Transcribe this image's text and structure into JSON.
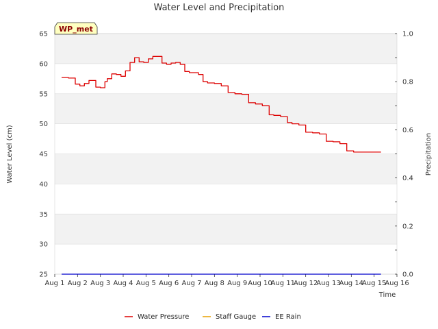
{
  "chart_data": {
    "type": "line",
    "title": "Water Level and Precipitation",
    "station_label": "WP_met",
    "xlabel": "Time",
    "ylabel": "Water Level (cm)",
    "y2label": "Precipitation",
    "x_tick_labels": [
      "Aug 1",
      "Aug 2",
      "Aug 3",
      "Aug 4",
      "Aug 5",
      "Aug 6",
      "Aug 7",
      "Aug 8",
      "Aug 9",
      "Aug 10",
      "Aug 11",
      "Aug 12",
      "Aug 13",
      "Aug 14",
      "Aug 15",
      "Aug 16"
    ],
    "xlim": [
      0,
      15
    ],
    "ylim": [
      25,
      65
    ],
    "y_ticks": [
      25,
      30,
      35,
      40,
      45,
      50,
      55,
      60,
      65
    ],
    "y2lim": [
      0.0,
      1.0
    ],
    "y2_ticks": [
      "0.0",
      "0.2",
      "0.4",
      "0.6",
      "0.8",
      "1.0"
    ],
    "grid": "horizontal, alternating shaded bands",
    "legend_placement": "bottom-center",
    "series": [
      {
        "name": "Water Pressure",
        "color": "#dd0000",
        "axis": "left",
        "x": [
          0.3,
          0.6,
          0.9,
          1.1,
          1.3,
          1.5,
          1.8,
          2.0,
          2.2,
          2.3,
          2.5,
          2.7,
          2.9,
          3.1,
          3.3,
          3.5,
          3.7,
          3.9,
          4.1,
          4.3,
          4.5,
          4.7,
          4.9,
          5.1,
          5.3,
          5.5,
          5.7,
          5.9,
          6.1,
          6.3,
          6.5,
          6.7,
          7.0,
          7.3,
          7.6,
          7.9,
          8.2,
          8.5,
          8.8,
          9.1,
          9.4,
          9.6,
          9.9,
          10.2,
          10.4,
          10.7,
          11.0,
          11.3,
          11.6,
          11.9,
          12.2,
          12.5,
          12.8,
          13.1,
          13.4,
          13.7,
          14.0,
          14.2,
          14.3
        ],
        "values": [
          57.7,
          57.6,
          56.6,
          56.3,
          56.7,
          57.2,
          56.1,
          56.0,
          57.0,
          57.5,
          58.3,
          58.2,
          57.9,
          58.8,
          60.2,
          61.0,
          60.3,
          60.2,
          60.8,
          61.2,
          61.2,
          60.1,
          59.9,
          60.1,
          60.2,
          59.9,
          58.7,
          58.5,
          58.5,
          58.2,
          57.0,
          56.8,
          56.7,
          56.3,
          55.2,
          55.0,
          54.9,
          53.5,
          53.3,
          53.0,
          51.5,
          51.4,
          51.2,
          50.2,
          50.0,
          49.8,
          48.6,
          48.5,
          48.3,
          47.1,
          47.0,
          46.7,
          45.5,
          45.3,
          45.3,
          45.3,
          45.3,
          45.3,
          45.3
        ],
        "x_end": 13.7
      },
      {
        "name": "Staff Gauge",
        "color": "#e8a000",
        "axis": "left",
        "x": [],
        "values": []
      },
      {
        "name": "EE Rain",
        "color": "#0000cc",
        "axis": "right",
        "x": [
          0.3,
          14.3
        ],
        "values": [
          0.0,
          0.0
        ]
      }
    ]
  }
}
